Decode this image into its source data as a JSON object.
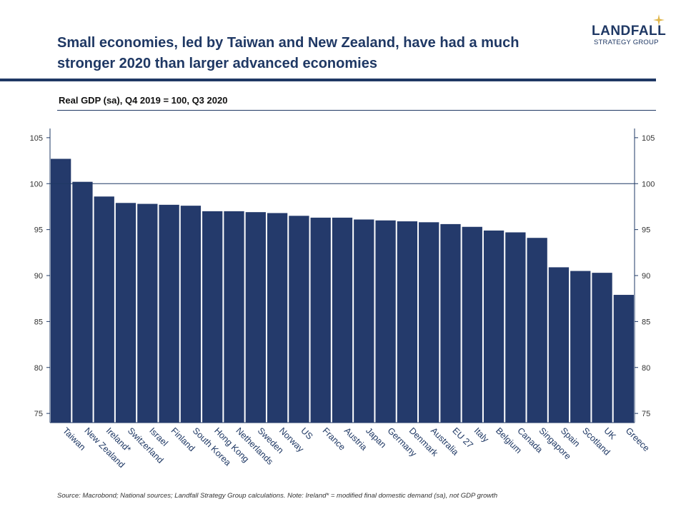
{
  "header": {
    "title_line1": "Small economies, led by Taiwan and New Zealand, have had a much",
    "title_line2": "stronger 2020 than larger advanced economies",
    "logo_main": "LANDFALL",
    "logo_sub": "STRATEGY GROUP",
    "subtitle": "Real GDP (sa), Q4 2019 = 100, Q3 2020"
  },
  "footer": {
    "source": "Source: Macrobond;  National sources; Landfall Strategy Group calculations.  Note: Ireland* = modified final domestic demand (sa), not GDP growth"
  },
  "colors": {
    "bar": "#243a6b",
    "text": "#1f3864",
    "accent_star": "#e0b64a"
  },
  "chart_data": {
    "type": "bar",
    "title": "",
    "xlabel": "",
    "ylabel": "",
    "ylim": [
      74,
      106
    ],
    "yticks": [
      75,
      80,
      85,
      90,
      95,
      100,
      105
    ],
    "reference_line": 100,
    "grid": false,
    "categories": [
      "Taiwan",
      "New Zealand",
      "Ireland*",
      "Switzerland",
      "Israel",
      "Finland",
      "South Korea",
      "Hong Kong",
      "Netherlands",
      "Sweden",
      "Norway",
      "US",
      "France",
      "Austria",
      "Japan",
      "Germany",
      "Denmark",
      "Australia",
      "EU 27",
      "Italy",
      "Belgium",
      "Canada",
      "Singapore",
      "Spain",
      "Scotland",
      "UK",
      "Greece"
    ],
    "values": [
      102.7,
      100.2,
      98.6,
      97.9,
      97.8,
      97.7,
      97.6,
      97.0,
      97.0,
      96.9,
      96.8,
      96.5,
      96.3,
      96.3,
      96.1,
      96.0,
      95.9,
      95.8,
      95.6,
      95.3,
      94.9,
      94.7,
      94.1,
      90.9,
      90.5,
      90.3,
      87.9
    ]
  }
}
